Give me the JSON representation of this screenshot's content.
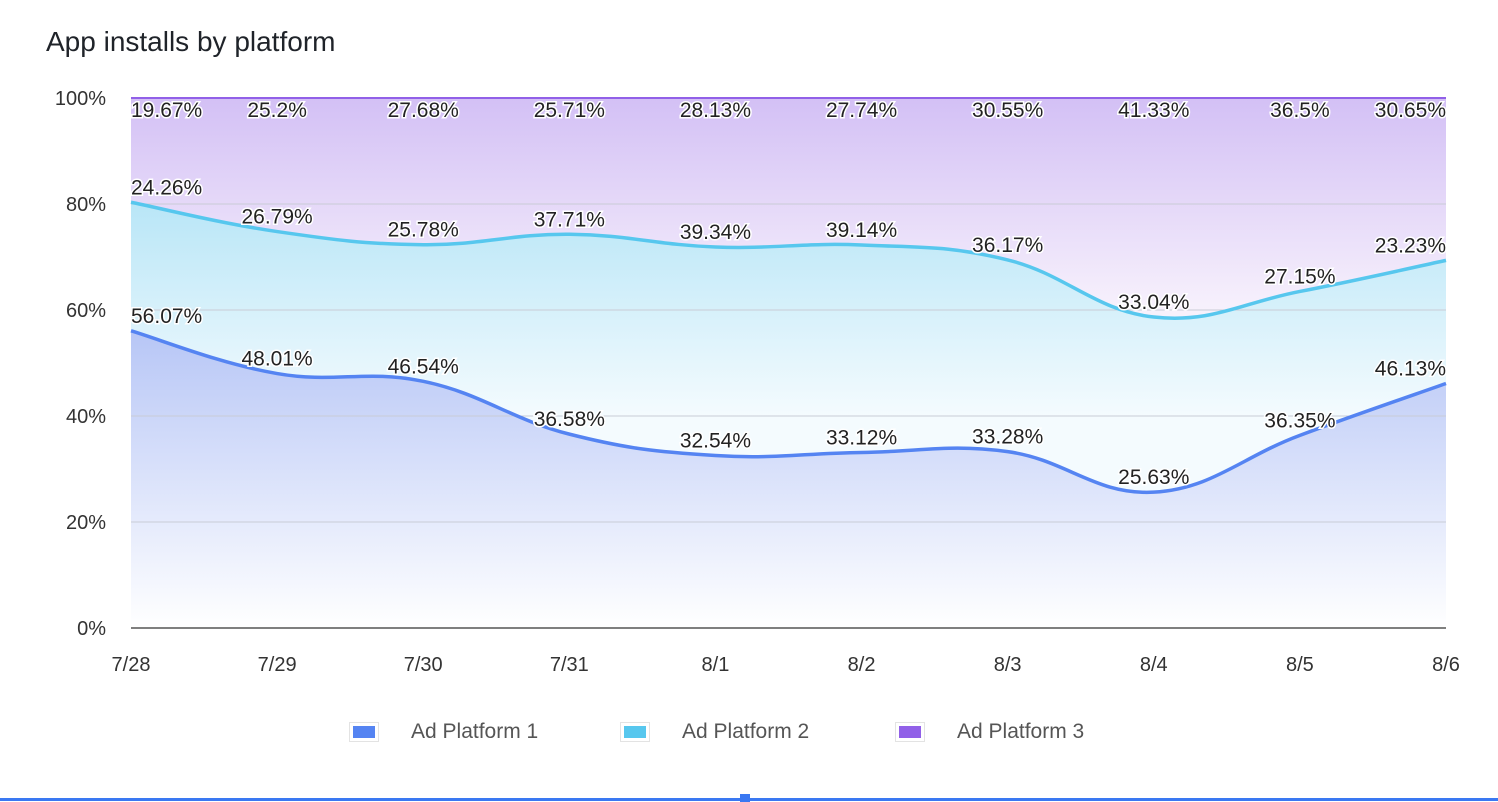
{
  "chart_data": {
    "type": "area",
    "stacked": "percent",
    "title": "App installs by platform",
    "categories": [
      "7/28",
      "7/29",
      "7/30",
      "7/31",
      "8/1",
      "8/2",
      "8/3",
      "8/4",
      "8/5",
      "8/6"
    ],
    "series": [
      {
        "name": "Ad Platform 1",
        "color": "#5584f2",
        "values": [
          56.07,
          48.01,
          46.54,
          36.58,
          32.54,
          33.12,
          33.28,
          25.63,
          36.35,
          46.13
        ],
        "labels": [
          "56.07%",
          "48.01%",
          "46.54%",
          "36.58%",
          "32.54%",
          "33.12%",
          "33.28%",
          "25.63%",
          "36.35%",
          "46.13%"
        ]
      },
      {
        "name": "Ad Platform 2",
        "color": "#57c7ee",
        "values": [
          24.26,
          26.79,
          25.78,
          37.71,
          39.34,
          39.14,
          36.17,
          33.04,
          27.15,
          23.23
        ],
        "labels": [
          "24.26%",
          "26.79%",
          "25.78%",
          "37.71%",
          "39.34%",
          "39.14%",
          "36.17%",
          "33.04%",
          "27.15%",
          "23.23%"
        ]
      },
      {
        "name": "Ad Platform 3",
        "color": "#9160e8",
        "values": [
          19.67,
          25.2,
          27.68,
          25.71,
          28.13,
          27.74,
          30.55,
          41.33,
          36.5,
          30.65
        ],
        "labels": [
          "19.67%",
          "25.2%",
          "27.68%",
          "25.71%",
          "28.13%",
          "27.74%",
          "30.55%",
          "41.33%",
          "36.5%",
          "30.65%"
        ]
      }
    ],
    "yticks": [
      "0%",
      "20%",
      "40%",
      "60%",
      "80%",
      "100%"
    ],
    "ylim": [
      0,
      100
    ],
    "grid": true,
    "legend": "bottom"
  }
}
